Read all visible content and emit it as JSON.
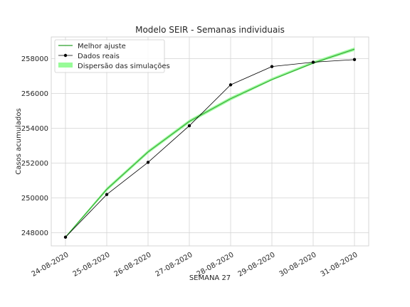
{
  "chart_data": {
    "type": "line",
    "title": "Modelo SEIR - Semanas individuais",
    "xlabel": "SEMANA 27",
    "ylabel": "Casos acumulados",
    "categories": [
      "24-08-2020",
      "25-08-2020",
      "26-08-2020",
      "27-08-2020",
      "28-08-2020",
      "29-08-2020",
      "30-08-2020",
      "31-08-2020"
    ],
    "ylim": [
      247250,
      259250
    ],
    "yticks": [
      "248000",
      "250000",
      "252000",
      "254000",
      "256000",
      "258000"
    ],
    "grid": true,
    "legend_position": "upper-left",
    "series": [
      {
        "name": "Melhor ajuste",
        "kind": "line",
        "color": "#2ca02c",
        "values": [
          247750,
          250500,
          252650,
          254400,
          255700,
          256800,
          257750,
          258550
        ]
      },
      {
        "name": "Dados reais",
        "kind": "line-markers",
        "color": "#000000",
        "values": [
          247750,
          250200,
          252050,
          254150,
          256500,
          257550,
          257800,
          257950
        ]
      },
      {
        "name": "Dispersão das simulações",
        "kind": "band",
        "color": "#98fb98",
        "lower": [
          247700,
          250400,
          252550,
          254300,
          255600,
          256750,
          257700,
          258450
        ],
        "upper": [
          247800,
          250600,
          252750,
          254500,
          255800,
          256900,
          257850,
          258650
        ]
      }
    ]
  }
}
